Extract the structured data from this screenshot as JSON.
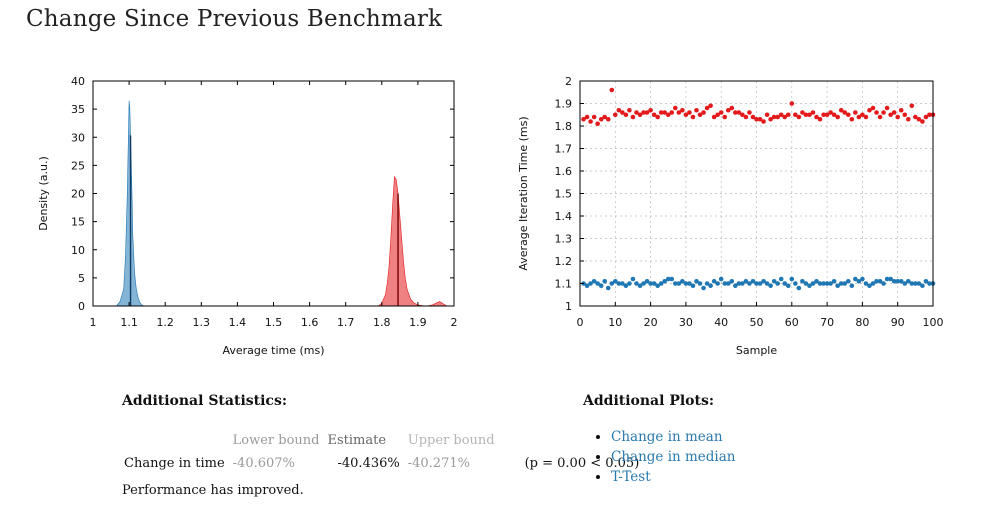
{
  "page": {
    "title": "Change Since Previous Benchmark"
  },
  "stats": {
    "heading": "Additional Statistics:",
    "col_lower": "Lower bound",
    "col_estimate": "Estimate",
    "col_upper": "Upper bound",
    "row_label": "Change in time",
    "lower": "-40.607%",
    "estimate": "-40.436%",
    "upper": "-40.271%",
    "pvalue": "(p = 0.00 < 0.05)",
    "conclusion": "Performance has improved."
  },
  "plots": {
    "heading": "Additional Plots:",
    "links": [
      "Change in mean",
      "Change in median",
      "T-Test"
    ]
  },
  "colors": {
    "blue": "#1f77b4",
    "red": "#e31a1c"
  },
  "chart_data": [
    {
      "type": "area",
      "title": "",
      "xlabel": "Average time (ms)",
      "ylabel": "Density (a.u.)",
      "xlim": [
        1,
        2
      ],
      "ylim": [
        0,
        40
      ],
      "xticks": [
        "1",
        "1.1",
        "1.2",
        "1.3",
        "1.4",
        "1.5",
        "1.6",
        "1.7",
        "1.8",
        "1.9",
        "2"
      ],
      "yticks": [
        "0",
        "5",
        "10",
        "15",
        "20",
        "25",
        "30",
        "35",
        "40"
      ],
      "series": [
        {
          "color": "#1f77b4",
          "x": [
            1.065,
            1.075,
            1.085,
            1.09,
            1.095,
            1.098,
            1.1,
            1.102,
            1.105,
            1.108,
            1.11,
            1.115,
            1.12,
            1.125,
            1.13,
            1.135,
            1.14
          ],
          "y": [
            0,
            0.8,
            3,
            9,
            20,
            30,
            36.5,
            35,
            28,
            20,
            13,
            6,
            3,
            1.5,
            0.6,
            0.2,
            0
          ],
          "mean": 1.104
        },
        {
          "color": "#e31a1c",
          "x": [
            1.79,
            1.8,
            1.81,
            1.815,
            1.82,
            1.825,
            1.83,
            1.835,
            1.84,
            1.845,
            1.85,
            1.855,
            1.86,
            1.865,
            1.87,
            1.88,
            1.89,
            1.9,
            1.91,
            1.92,
            1.93,
            1.94,
            1.95,
            1.96,
            1.97,
            1.98
          ],
          "y": [
            0,
            0.5,
            2,
            4,
            7,
            12,
            18,
            23,
            22.5,
            20,
            16,
            12,
            8,
            5,
            3,
            1.2,
            0.5,
            0.2,
            0.1,
            0,
            0.05,
            0.2,
            0.5,
            0.8,
            0.4,
            0
          ],
          "mean": 1.845
        }
      ]
    },
    {
      "type": "scatter",
      "title": "",
      "xlabel": "Sample",
      "ylabel": "Average Iteration Time (ms)",
      "xlim": [
        0,
        100
      ],
      "ylim": [
        1,
        2
      ],
      "grid": true,
      "xticks": [
        "0",
        "10",
        "20",
        "30",
        "40",
        "50",
        "60",
        "70",
        "80",
        "90",
        "100"
      ],
      "yticks": [
        "1",
        "1.1",
        "1.2",
        "1.3",
        "1.4",
        "1.5",
        "1.6",
        "1.7",
        "1.8",
        "1.9",
        "2"
      ],
      "series": [
        {
          "color": "#e31a1c",
          "x": [
            1,
            2,
            3,
            4,
            5,
            6,
            7,
            8,
            9,
            10,
            11,
            12,
            13,
            14,
            15,
            16,
            17,
            18,
            19,
            20,
            21,
            22,
            23,
            24,
            25,
            26,
            27,
            28,
            29,
            30,
            31,
            32,
            33,
            34,
            35,
            36,
            37,
            38,
            39,
            40,
            41,
            42,
            43,
            44,
            45,
            46,
            47,
            48,
            49,
            50,
            51,
            52,
            53,
            54,
            55,
            56,
            57,
            58,
            59,
            60,
            61,
            62,
            63,
            64,
            65,
            66,
            67,
            68,
            69,
            70,
            71,
            72,
            73,
            74,
            75,
            76,
            77,
            78,
            79,
            80,
            81,
            82,
            83,
            84,
            85,
            86,
            87,
            88,
            89,
            90,
            91,
            92,
            93,
            94,
            95,
            96,
            97,
            98,
            99,
            100
          ],
          "y": [
            1.83,
            1.84,
            1.82,
            1.84,
            1.81,
            1.83,
            1.84,
            1.83,
            1.96,
            1.85,
            1.87,
            1.86,
            1.85,
            1.87,
            1.84,
            1.86,
            1.85,
            1.86,
            1.86,
            1.87,
            1.85,
            1.84,
            1.86,
            1.86,
            1.85,
            1.86,
            1.88,
            1.86,
            1.87,
            1.85,
            1.86,
            1.84,
            1.87,
            1.85,
            1.86,
            1.88,
            1.89,
            1.84,
            1.85,
            1.86,
            1.84,
            1.87,
            1.88,
            1.86,
            1.86,
            1.85,
            1.84,
            1.86,
            1.84,
            1.83,
            1.83,
            1.82,
            1.85,
            1.83,
            1.84,
            1.84,
            1.85,
            1.84,
            1.85,
            1.9,
            1.85,
            1.84,
            1.86,
            1.85,
            1.85,
            1.86,
            1.84,
            1.83,
            1.85,
            1.85,
            1.86,
            1.85,
            1.84,
            1.87,
            1.86,
            1.85,
            1.83,
            1.86,
            1.84,
            1.85,
            1.84,
            1.87,
            1.88,
            1.86,
            1.84,
            1.86,
            1.88,
            1.85,
            1.86,
            1.84,
            1.87,
            1.85,
            1.83,
            1.89,
            1.84,
            1.83,
            1.82,
            1.84,
            1.85,
            1.85
          ]
        },
        {
          "color": "#1f77b4",
          "x": [
            1,
            2,
            3,
            4,
            5,
            6,
            7,
            8,
            9,
            10,
            11,
            12,
            13,
            14,
            15,
            16,
            17,
            18,
            19,
            20,
            21,
            22,
            23,
            24,
            25,
            26,
            27,
            28,
            29,
            30,
            31,
            32,
            33,
            34,
            35,
            36,
            37,
            38,
            39,
            40,
            41,
            42,
            43,
            44,
            45,
            46,
            47,
            48,
            49,
            50,
            51,
            52,
            53,
            54,
            55,
            56,
            57,
            58,
            59,
            60,
            61,
            62,
            63,
            64,
            65,
            66,
            67,
            68,
            69,
            70,
            71,
            72,
            73,
            74,
            75,
            76,
            77,
            78,
            79,
            80,
            81,
            82,
            83,
            84,
            85,
            86,
            87,
            88,
            89,
            90,
            91,
            92,
            93,
            94,
            95,
            96,
            97,
            98,
            99,
            100
          ],
          "y": [
            1.1,
            1.09,
            1.1,
            1.11,
            1.1,
            1.09,
            1.11,
            1.08,
            1.1,
            1.11,
            1.1,
            1.1,
            1.09,
            1.1,
            1.12,
            1.1,
            1.09,
            1.1,
            1.11,
            1.1,
            1.1,
            1.09,
            1.1,
            1.11,
            1.12,
            1.12,
            1.1,
            1.1,
            1.11,
            1.1,
            1.1,
            1.09,
            1.11,
            1.1,
            1.08,
            1.1,
            1.09,
            1.11,
            1.1,
            1.12,
            1.1,
            1.1,
            1.11,
            1.09,
            1.1,
            1.1,
            1.11,
            1.1,
            1.11,
            1.1,
            1.1,
            1.11,
            1.1,
            1.09,
            1.11,
            1.1,
            1.12,
            1.1,
            1.09,
            1.12,
            1.1,
            1.08,
            1.11,
            1.1,
            1.09,
            1.1,
            1.11,
            1.1,
            1.1,
            1.1,
            1.1,
            1.11,
            1.09,
            1.1,
            1.1,
            1.11,
            1.09,
            1.12,
            1.11,
            1.12,
            1.1,
            1.09,
            1.1,
            1.11,
            1.11,
            1.1,
            1.12,
            1.12,
            1.11,
            1.11,
            1.11,
            1.1,
            1.11,
            1.1,
            1.1,
            1.1,
            1.09,
            1.11,
            1.1,
            1.1
          ]
        }
      ]
    }
  ]
}
